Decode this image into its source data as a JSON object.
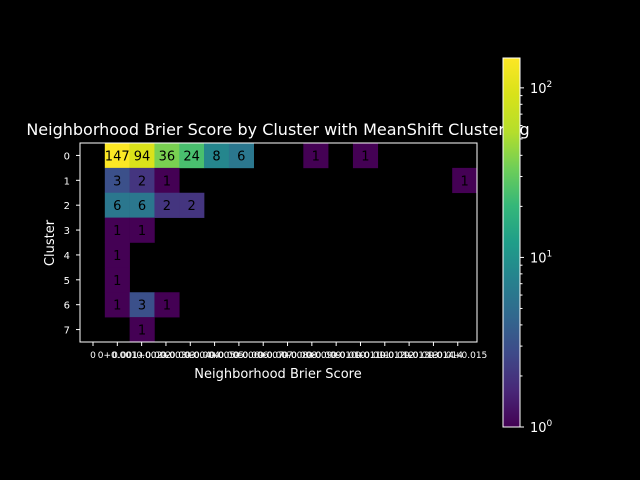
{
  "chart_data": {
    "type": "heatmap",
    "title": "Neighborhood Brier Score by Cluster with MeanShift Clustering",
    "xlabel": "Neighborhood Brier Score",
    "ylabel": "Cluster",
    "x_ticks": [
      "0",
      "0+0.001",
      "0.001+0.002",
      "0.002+0.003",
      "0.003+0.004",
      "0.004+0.005",
      "0.005+0.006",
      "0.006+0.007",
      "0.007+0.008",
      "0.008+0.009",
      "0.009+0.010",
      "0.010+0.011",
      "0.011+0.012",
      "0.012+0.013",
      "0.013+0.014",
      "0.014+0.015"
    ],
    "y_ticks": [
      "0",
      "1",
      "2",
      "3",
      "4",
      "5",
      "6",
      "7"
    ],
    "cells": [
      {
        "row": 0,
        "col": 1,
        "value": 147
      },
      {
        "row": 0,
        "col": 2,
        "value": 94
      },
      {
        "row": 0,
        "col": 3,
        "value": 36
      },
      {
        "row": 0,
        "col": 4,
        "value": 24
      },
      {
        "row": 0,
        "col": 5,
        "value": 8
      },
      {
        "row": 0,
        "col": 6,
        "value": 6
      },
      {
        "row": 0,
        "col": 9,
        "value": 1
      },
      {
        "row": 0,
        "col": 11,
        "value": 1
      },
      {
        "row": 1,
        "col": 1,
        "value": 3
      },
      {
        "row": 1,
        "col": 2,
        "value": 2
      },
      {
        "row": 1,
        "col": 3,
        "value": 1
      },
      {
        "row": 1,
        "col": 15,
        "value": 1
      },
      {
        "row": 2,
        "col": 1,
        "value": 6
      },
      {
        "row": 2,
        "col": 2,
        "value": 6
      },
      {
        "row": 2,
        "col": 3,
        "value": 2
      },
      {
        "row": 2,
        "col": 4,
        "value": 2
      },
      {
        "row": 3,
        "col": 1,
        "value": 1
      },
      {
        "row": 3,
        "col": 2,
        "value": 1
      },
      {
        "row": 4,
        "col": 1,
        "value": 1
      },
      {
        "row": 5,
        "col": 1,
        "value": 1
      },
      {
        "row": 6,
        "col": 1,
        "value": 1
      },
      {
        "row": 6,
        "col": 2,
        "value": 3
      },
      {
        "row": 6,
        "col": 3,
        "value": 1
      },
      {
        "row": 7,
        "col": 2,
        "value": 1
      }
    ],
    "colorbar": {
      "scale": "log",
      "range": [
        1,
        150
      ],
      "ticks": [
        {
          "value": 1,
          "base": "10",
          "exp": "0"
        },
        {
          "value": 10,
          "base": "10",
          "exp": "1"
        },
        {
          "value": 100,
          "base": "10",
          "exp": "2"
        }
      ],
      "colormap": "viridis"
    },
    "grid": false,
    "legend": "none"
  }
}
